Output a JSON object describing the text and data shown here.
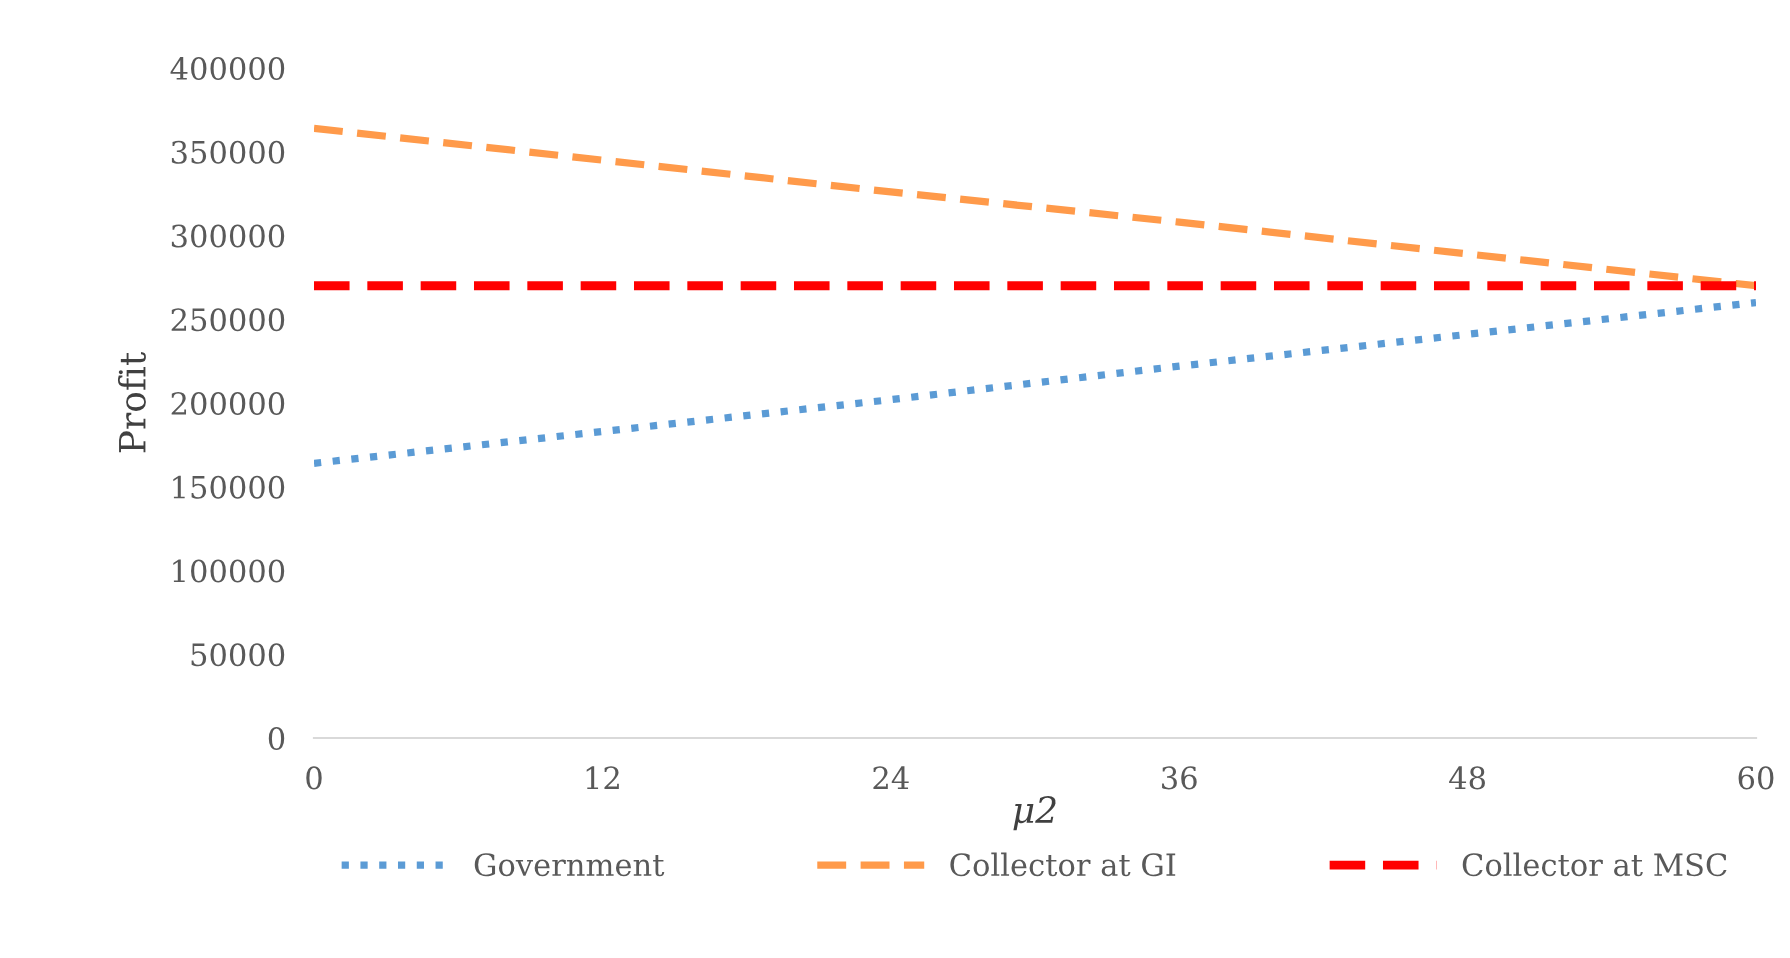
{
  "chart_data": {
    "type": "line",
    "xlabel": "μ2",
    "ylabel": "Profit",
    "x": [
      0,
      12,
      24,
      36,
      48,
      60
    ],
    "series": [
      {
        "name": "Government",
        "color": "#5b9bd5",
        "line_style": "dotted",
        "values": [
          164000,
          183000,
          202000,
          222000,
          241000,
          260000
        ]
      },
      {
        "name": "Collector at GI",
        "color": "#ff9a4a",
        "line_style": "dashed",
        "values": [
          364000,
          345000,
          326000,
          308000,
          289000,
          270000
        ]
      },
      {
        "name": "Collector at MSC",
        "color": "#ff0000",
        "line_style": "dashed",
        "values": [
          270000,
          270000,
          270000,
          270000,
          270000,
          270000
        ]
      }
    ],
    "xlim": [
      0,
      60
    ],
    "xticks": [
      0,
      12,
      24,
      36,
      48,
      60
    ],
    "ylim": [
      0,
      400000
    ],
    "yticks": [
      0,
      50000,
      100000,
      150000,
      200000,
      250000,
      300000,
      350000,
      400000
    ],
    "grid": false,
    "legend": "bottom",
    "marker": "none"
  }
}
